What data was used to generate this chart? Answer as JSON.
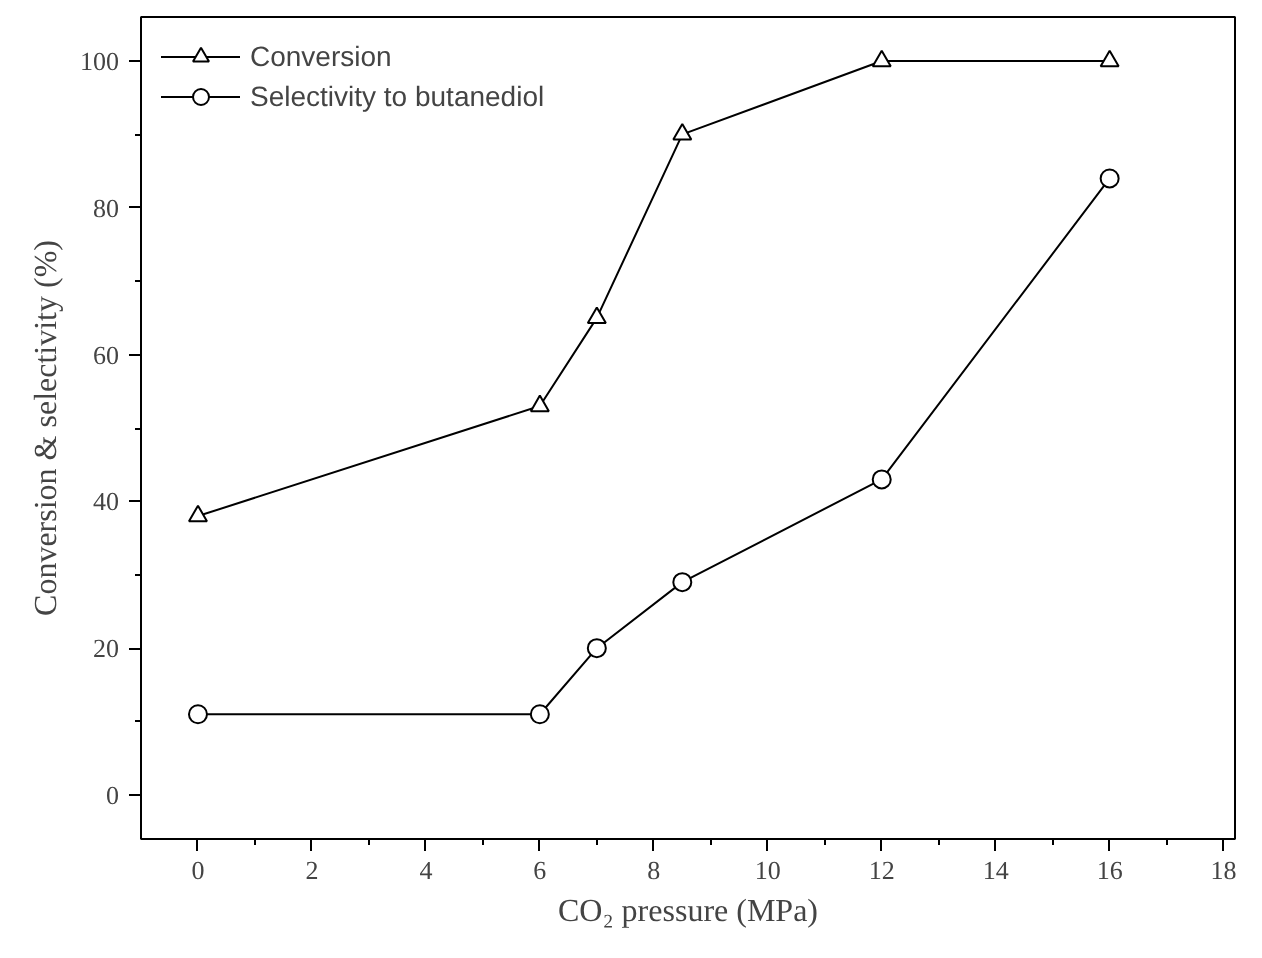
{
  "chart_data": {
    "type": "line",
    "xlabel": "CO₂ pressure (MPa)",
    "ylabel": "Conversion & selectivity (%)",
    "xlim": [
      -1,
      18.2
    ],
    "ylim": [
      -6,
      106
    ],
    "xticks": [
      0,
      2,
      4,
      6,
      8,
      10,
      12,
      14,
      16,
      18
    ],
    "yticks": [
      0,
      20,
      40,
      60,
      80,
      100
    ],
    "grid": false,
    "legend": "top left",
    "line_style": "solid",
    "series": [
      {
        "name": "Conversion",
        "color": "#000000",
        "marker": "triangle",
        "x": [
          0,
          6,
          7,
          8.5,
          12,
          16
        ],
        "values": [
          38,
          53,
          65,
          90,
          100,
          100
        ]
      },
      {
        "name": "Selectivity to butanediol",
        "color": "#000000",
        "marker": "circle",
        "x": [
          0,
          6,
          7,
          8.5,
          12,
          16
        ],
        "values": [
          11,
          11,
          20,
          29,
          43,
          84
        ]
      }
    ]
  }
}
